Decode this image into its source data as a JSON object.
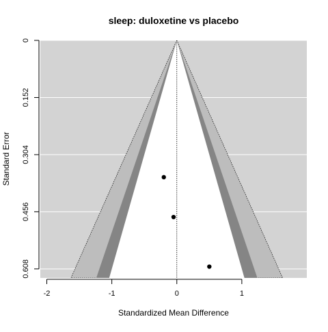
{
  "chart_data": {
    "type": "scatter",
    "subtype": "contour-enhanced funnel plot",
    "title": "sleep: duloxetine vs placebo",
    "xlabel": "Standardized Mean Difference",
    "ylabel": "Standard Error",
    "xlim": [
      -2.1,
      2.0
    ],
    "ylim": [
      0,
      0.632
    ],
    "y_reversed": true,
    "x_ticks": [
      {
        "value": -2,
        "label": "-2"
      },
      {
        "value": -1,
        "label": "-1"
      },
      {
        "value": 0,
        "label": "0"
      },
      {
        "value": 1,
        "label": "1"
      }
    ],
    "y_ticks": [
      {
        "value": 0,
        "label": "0"
      },
      {
        "value": 0.152,
        "label": "0.152"
      },
      {
        "value": 0.304,
        "label": "0.304"
      },
      {
        "value": 0.456,
        "label": "0.456"
      },
      {
        "value": 0.608,
        "label": "0.608"
      }
    ],
    "grid": "horizontal",
    "reference_line_x": 0,
    "points": [
      {
        "x": -0.2,
        "y": 0.364
      },
      {
        "x": -0.05,
        "y": 0.47
      },
      {
        "x": 0.5,
        "y": 0.602
      }
    ],
    "contour_z": [
      1.645,
      1.96,
      2.576
    ],
    "colors": {
      "panel_background": "#d3d3d3",
      "contour_90": "#ffffff",
      "contour_95": "#858585",
      "contour_99": "#bdbdbd",
      "gridline": "#ffffff",
      "point": "#000000"
    }
  }
}
